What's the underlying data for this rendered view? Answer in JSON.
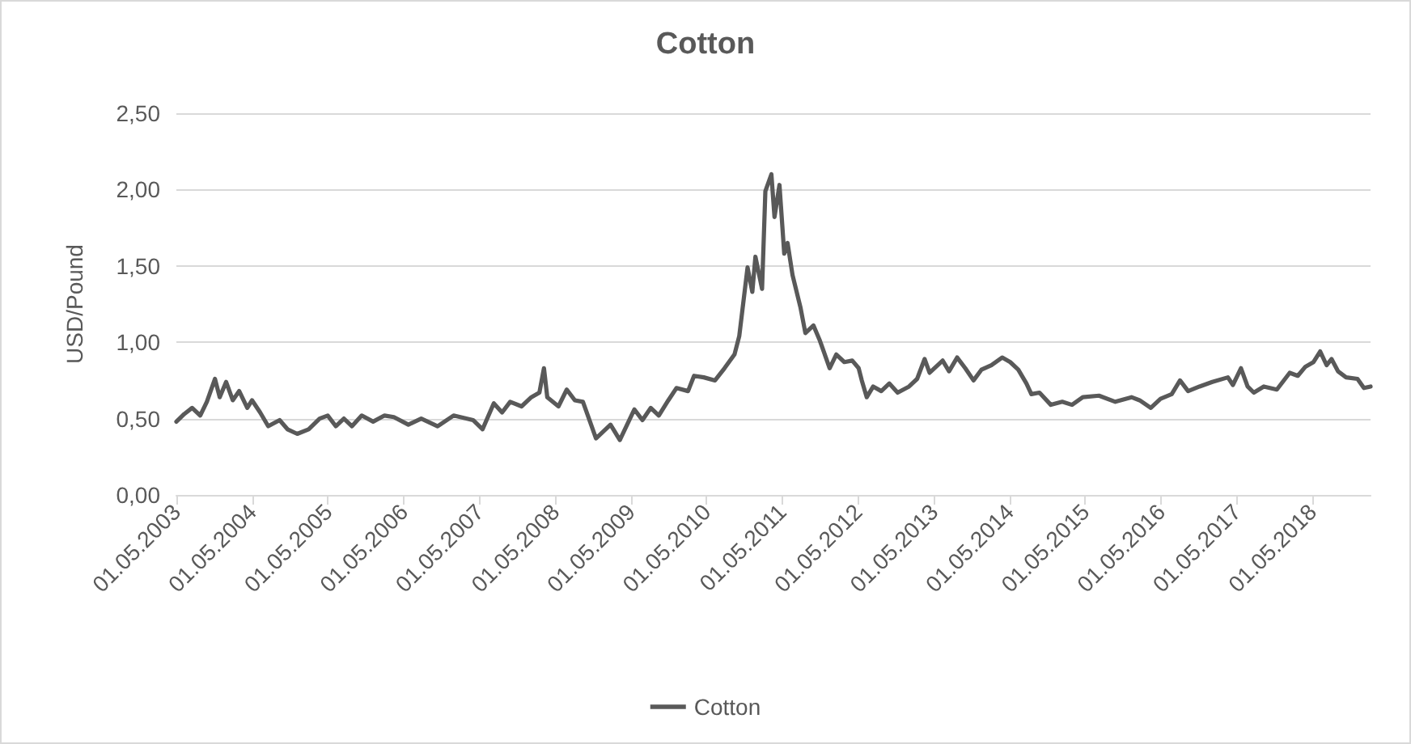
{
  "chart_data": {
    "type": "line",
    "title": "Cotton",
    "ylabel": "USD/Pound",
    "x": [
      "2003-05-01",
      "2003-06-08",
      "2003-07-16",
      "2003-08-24",
      "2003-09-25",
      "2003-11-03",
      "2003-11-26",
      "2003-12-27",
      "2004-01-28",
      "2004-02-28",
      "2004-04-07",
      "2004-04-30",
      "2004-06-08",
      "2004-07-17",
      "2004-09-10",
      "2004-10-18",
      "2004-12-04",
      "2005-01-28",
      "2005-03-22",
      "2005-04-30",
      "2005-06-08",
      "2005-07-17",
      "2005-08-25",
      "2005-10-11",
      "2005-12-05",
      "2006-01-29",
      "2006-03-15",
      "2006-05-24",
      "2006-07-25",
      "2006-10-12",
      "2006-12-28",
      "2007-04-01",
      "2007-05-17",
      "2007-07-10",
      "2007-08-19",
      "2007-09-27",
      "2007-11-21",
      "2008-01-07",
      "2008-02-15",
      "2008-03-08",
      "2008-03-24",
      "2008-05-17",
      "2008-06-26",
      "2008-08-04",
      "2008-09-12",
      "2008-11-14",
      "2009-01-23",
      "2009-03-09",
      "2009-05-18",
      "2009-06-26",
      "2009-08-05",
      "2009-09-13",
      "2009-10-29",
      "2009-12-07",
      "2010-02-01",
      "2010-03-02",
      "2010-04-18",
      "2010-06-11",
      "2010-07-27",
      "2010-09-13",
      "2010-10-06",
      "2010-11-15",
      "2010-12-08",
      "2010-12-23",
      "2011-01-24",
      "2011-02-09",
      "2011-03-10",
      "2011-03-25",
      "2011-04-18",
      "2011-05-11",
      "2011-05-27",
      "2011-06-20",
      "2011-07-28",
      "2011-08-21",
      "2011-09-29",
      "2011-10-30",
      "2011-12-16",
      "2012-01-17",
      "2012-02-25",
      "2012-04-03",
      "2012-05-04",
      "2012-05-19",
      "2012-06-12",
      "2012-07-13",
      "2012-08-21",
      "2012-09-29",
      "2012-11-08",
      "2013-01-02",
      "2013-02-10",
      "2013-03-18",
      "2013-04-11",
      "2013-05-20",
      "2013-06-13",
      "2013-07-14",
      "2013-08-22",
      "2013-09-30",
      "2013-11-09",
      "2013-12-17",
      "2014-02-03",
      "2014-03-27",
      "2014-05-05",
      "2014-06-13",
      "2014-07-22",
      "2014-08-15",
      "2014-09-23",
      "2014-11-17",
      "2015-01-11",
      "2015-02-27",
      "2015-04-20",
      "2015-07-07",
      "2015-09-24",
      "2015-12-11",
      "2016-01-19",
      "2016-03-13",
      "2016-04-29",
      "2016-06-22",
      "2016-08-01",
      "2016-09-09",
      "2016-11-03",
      "2017-01-04",
      "2017-03-20",
      "2017-04-13",
      "2017-05-22",
      "2017-06-23",
      "2017-07-23",
      "2017-09-09",
      "2017-11-11",
      "2018-01-12",
      "2018-02-20",
      "2018-03-29",
      "2018-05-07",
      "2018-06-08",
      "2018-07-09",
      "2018-08-02",
      "2018-09-02",
      "2018-10-11",
      "2018-12-05",
      "2019-01-05",
      "2019-02-06"
    ],
    "series": [
      {
        "name": "Cotton",
        "color": "#595959",
        "values": [
          0.48,
          0.53,
          0.57,
          0.52,
          0.61,
          0.76,
          0.64,
          0.74,
          0.62,
          0.68,
          0.57,
          0.62,
          0.54,
          0.45,
          0.49,
          0.43,
          0.4,
          0.43,
          0.5,
          0.52,
          0.45,
          0.5,
          0.45,
          0.52,
          0.48,
          0.52,
          0.51,
          0.46,
          0.5,
          0.45,
          0.52,
          0.49,
          0.43,
          0.6,
          0.54,
          0.61,
          0.58,
          0.64,
          0.67,
          0.83,
          0.64,
          0.58,
          0.69,
          0.62,
          0.61,
          0.37,
          0.46,
          0.36,
          0.56,
          0.49,
          0.57,
          0.52,
          0.62,
          0.7,
          0.68,
          0.78,
          0.77,
          0.75,
          0.83,
          0.92,
          1.04,
          1.49,
          1.33,
          1.56,
          1.35,
          1.99,
          2.1,
          1.82,
          2.03,
          1.58,
          1.65,
          1.44,
          1.23,
          1.06,
          1.11,
          1.01,
          0.83,
          0.92,
          0.87,
          0.88,
          0.83,
          0.75,
          0.64,
          0.71,
          0.68,
          0.73,
          0.67,
          0.71,
          0.76,
          0.89,
          0.8,
          0.85,
          0.88,
          0.81,
          0.9,
          0.83,
          0.75,
          0.82,
          0.85,
          0.9,
          0.87,
          0.82,
          0.73,
          0.66,
          0.67,
          0.59,
          0.61,
          0.59,
          0.64,
          0.65,
          0.61,
          0.64,
          0.62,
          0.57,
          0.63,
          0.66,
          0.75,
          0.68,
          0.71,
          0.74,
          0.77,
          0.72,
          0.83,
          0.71,
          0.67,
          0.71,
          0.69,
          0.8,
          0.78,
          0.84,
          0.87,
          0.94,
          0.85,
          0.89,
          0.81,
          0.77,
          0.76,
          0.7,
          0.71
        ]
      }
    ],
    "xlim": [
      "2003-05-01",
      "2019-02-06"
    ],
    "xticks": [
      {
        "value": "2003-05-01",
        "label": "01.05.2003"
      },
      {
        "value": "2004-05-01",
        "label": "01.05.2004"
      },
      {
        "value": "2005-05-01",
        "label": "01.05.2005"
      },
      {
        "value": "2006-05-01",
        "label": "01.05.2006"
      },
      {
        "value": "2007-05-01",
        "label": "01.05.2007"
      },
      {
        "value": "2008-05-01",
        "label": "01.05.2008"
      },
      {
        "value": "2009-05-01",
        "label": "01.05.2009"
      },
      {
        "value": "2010-05-01",
        "label": "01.05.2010"
      },
      {
        "value": "2011-05-01",
        "label": "01.05.2011"
      },
      {
        "value": "2012-05-01",
        "label": "01.05.2012"
      },
      {
        "value": "2013-05-01",
        "label": "01.05.2013"
      },
      {
        "value": "2014-05-01",
        "label": "01.05.2014"
      },
      {
        "value": "2015-05-01",
        "label": "01.05.2015"
      },
      {
        "value": "2016-05-01",
        "label": "01.05.2016"
      },
      {
        "value": "2017-05-01",
        "label": "01.05.2017"
      },
      {
        "value": "2018-05-01",
        "label": "01.05.2018"
      }
    ],
    "ylim": [
      0,
      2.5
    ],
    "yticks": [
      {
        "value": 0,
        "label": "0,00"
      },
      {
        "value": 0.5,
        "label": "0,50"
      },
      {
        "value": 1,
        "label": "1,00"
      },
      {
        "value": 1.5,
        "label": "1,50"
      },
      {
        "value": 2,
        "label": "2,00"
      },
      {
        "value": 2.5,
        "label": "2,50"
      }
    ],
    "grid": "y",
    "legend": "bottom",
    "marker": "none",
    "line_style": "solid"
  }
}
